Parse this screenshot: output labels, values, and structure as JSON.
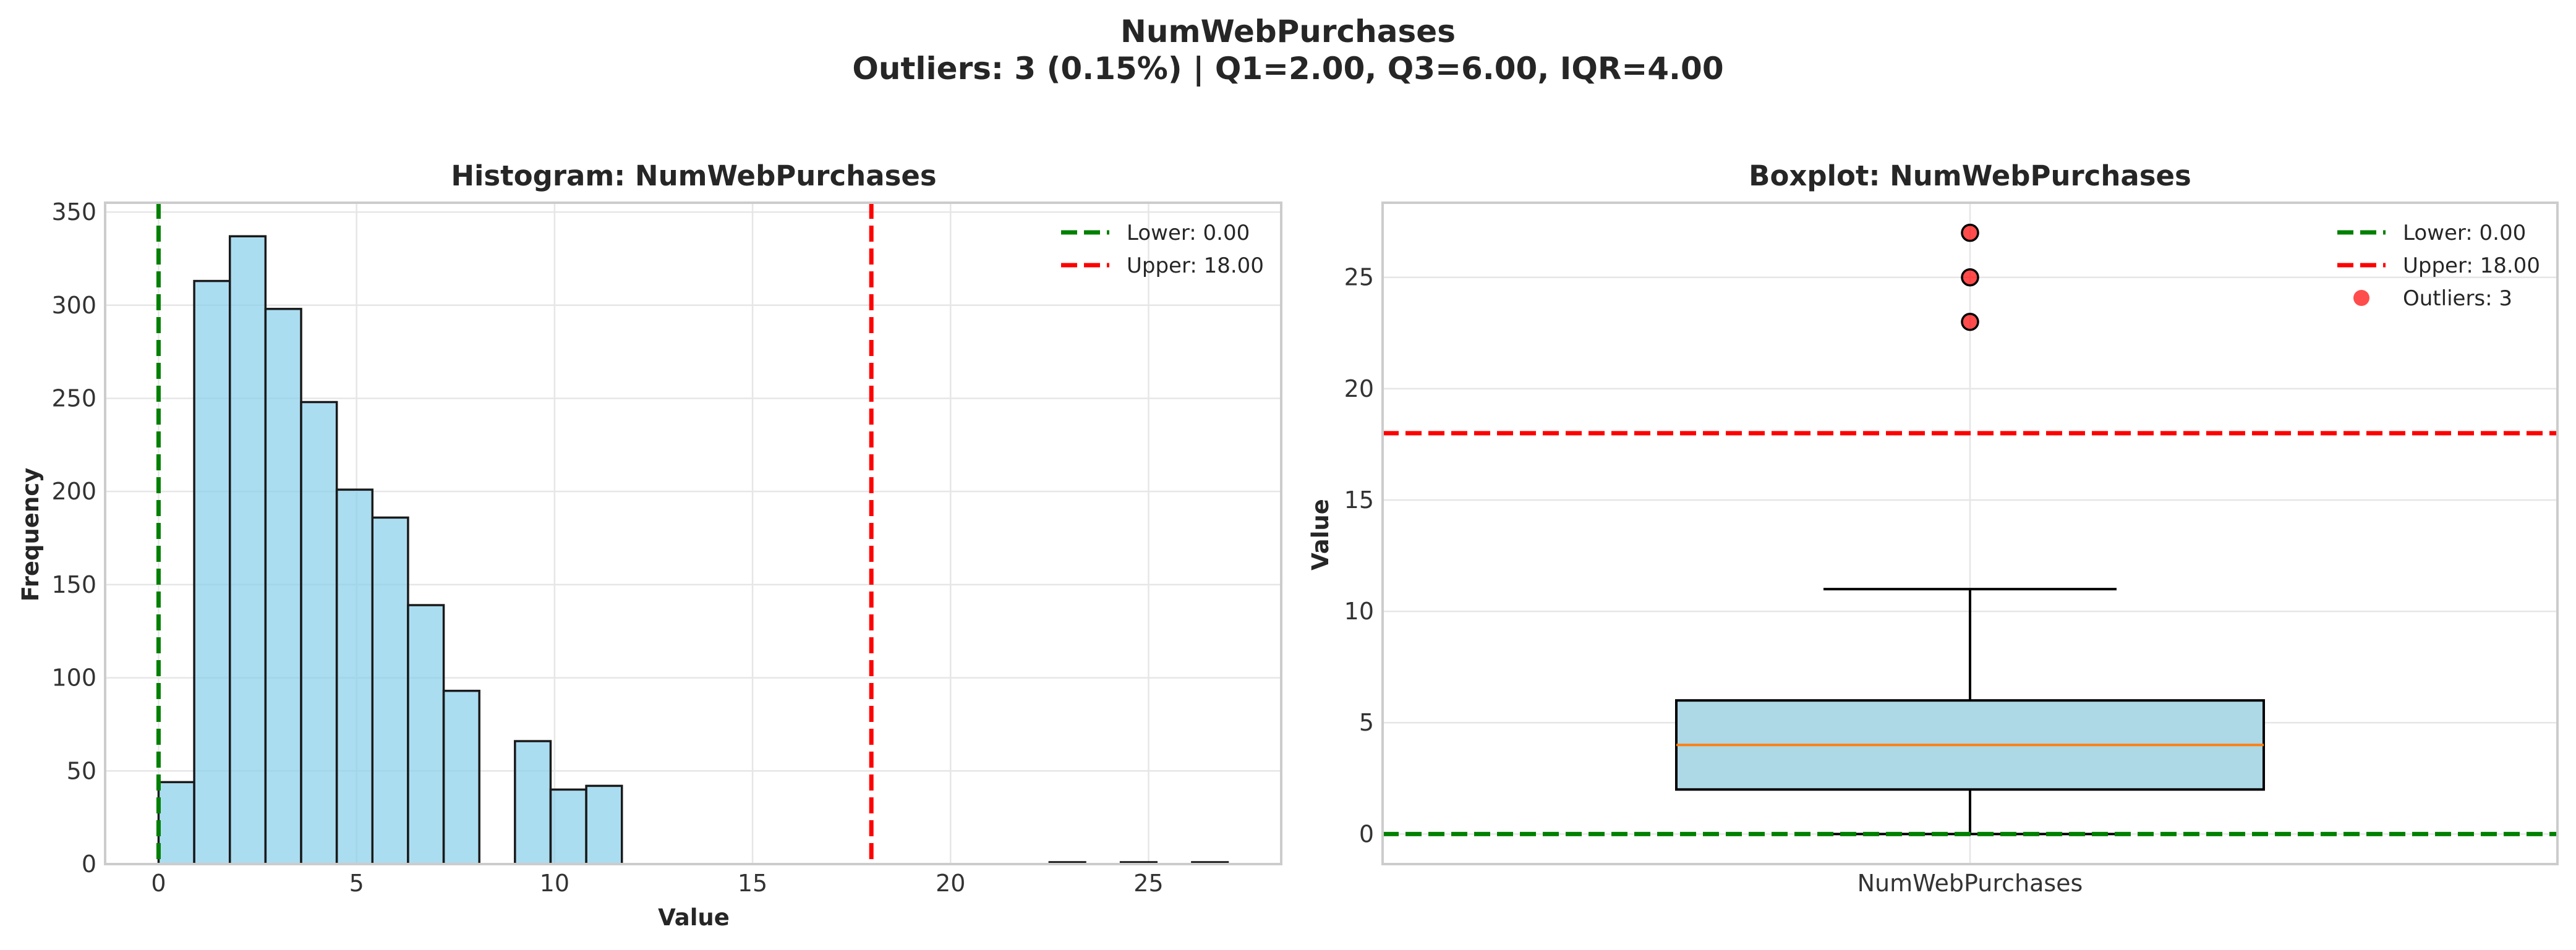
{
  "suptitle": {
    "line1": "NumWebPurchases",
    "line2": "Outliers: 3 (0.15%) | Q1=2.00, Q3=6.00, IQR=4.00"
  },
  "chart_data": [
    {
      "type": "bar",
      "subtype": "histogram",
      "title": "Histogram: NumWebPurchases",
      "xlabel": "Value",
      "ylabel": "Frequency",
      "xlim": [
        -1.35,
        28.35
      ],
      "ylim": [
        0,
        355
      ],
      "xticks": [
        0,
        5,
        10,
        15,
        20,
        25
      ],
      "yticks": [
        0,
        50,
        100,
        150,
        200,
        250,
        300,
        350
      ],
      "grid": true,
      "bin_width": 0.9,
      "bins": [
        {
          "x0": 0.0,
          "count": 44
        },
        {
          "x0": 0.9,
          "count": 313
        },
        {
          "x0": 1.8,
          "count": 337
        },
        {
          "x0": 2.7,
          "count": 298
        },
        {
          "x0": 3.6,
          "count": 248
        },
        {
          "x0": 4.5,
          "count": 201
        },
        {
          "x0": 5.4,
          "count": 186
        },
        {
          "x0": 6.3,
          "count": 139
        },
        {
          "x0": 7.2,
          "count": 93
        },
        {
          "x0": 8.1,
          "count": 0
        },
        {
          "x0": 9.0,
          "count": 66
        },
        {
          "x0": 9.9,
          "count": 40
        },
        {
          "x0": 10.8,
          "count": 42
        },
        {
          "x0": 22.5,
          "count": 1
        },
        {
          "x0": 24.3,
          "count": 1
        },
        {
          "x0": 26.1,
          "count": 1
        }
      ],
      "bar_color": "#87ceeb",
      "vlines": [
        {
          "x": 0,
          "label": "Lower: 0.00",
          "color": "#008000"
        },
        {
          "x": 18,
          "label": "Upper: 18.00",
          "color": "#ff0000"
        }
      ],
      "legend": "top-right"
    },
    {
      "type": "boxplot",
      "title": "Boxplot: NumWebPurchases",
      "ylabel": "Value",
      "category": "NumWebPurchases",
      "ylim": [
        -1.35,
        28.35
      ],
      "yticks": [
        0,
        5,
        10,
        15,
        20,
        25
      ],
      "grid": true,
      "box": {
        "q1": 2,
        "median": 4,
        "q3": 6,
        "whisker_low": 0,
        "whisker_high": 11
      },
      "box_color": "#add8e6",
      "median_color": "#ff7f0e",
      "outliers": [
        23,
        25,
        27
      ],
      "outlier_color": "#ff0000",
      "hlines": [
        {
          "y": 0,
          "label": "Lower: 0.00",
          "color": "#008000"
        },
        {
          "y": 18,
          "label": "Upper: 18.00",
          "color": "#ff0000"
        }
      ],
      "outlier_legend": "Outliers: 3",
      "legend": "top-right"
    }
  ]
}
